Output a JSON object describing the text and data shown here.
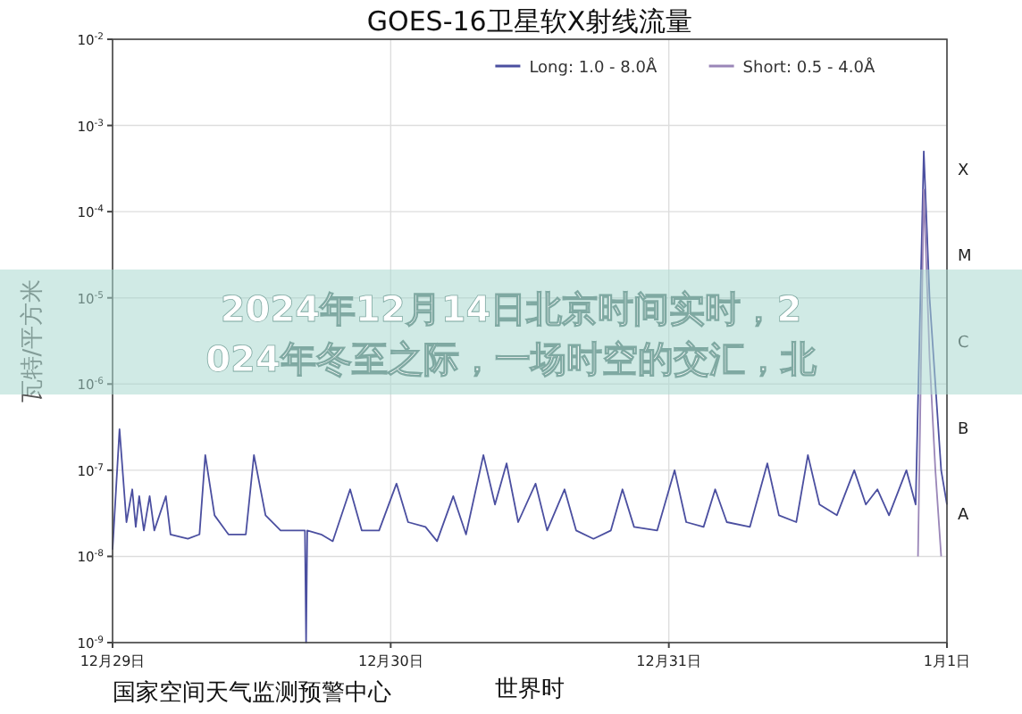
{
  "chart_data": {
    "type": "line",
    "title": "GOES-16卫星软X射线流量",
    "xlabel": "世界时",
    "ylabel": "瓦特/平方米",
    "annotations": [
      "国家空间天气监测预警中心",
      "2024年12月14日北京时间实时，2024年冬至之际，一场时空的交汇，北",
      "X",
      "M",
      "C",
      "B",
      "A"
    ],
    "log": "y",
    "grid": true,
    "legend": "top right",
    "marker": "none",
    "line_style": "solid",
    "xlim": [
      "2024-12-29T00:00",
      "2025-01-01T00:00"
    ],
    "xticks": [
      {
        "value": "2024-12-29T00:00",
        "label": "12月29日"
      },
      {
        "value": "2024-12-30T00:00",
        "label": "12月30日"
      },
      {
        "value": "2024-12-31T00:00",
        "label": "12月31日"
      },
      {
        "value": "2025-01-01T00:00",
        "label": "1月1日"
      }
    ],
    "ylim": [
      1e-09,
      0.01
    ],
    "yticks": [
      {
        "value": 1e-09,
        "label": "10$^{-9}$"
      },
      {
        "value": 1e-08,
        "label": "10$^{-8}$"
      },
      {
        "value": 1e-07,
        "label": "10$^{-7}$"
      },
      {
        "value": 1e-06,
        "label": "10$^{-6}$"
      },
      {
        "value": 1e-05,
        "label": "10$^{-5}$"
      },
      {
        "value": 0.0001,
        "label": "10$^{-4}$"
      },
      {
        "value": 0.001,
        "label": "10$^{-3}$"
      },
      {
        "value": 0.01,
        "label": "10$^{-2}$"
      }
    ],
    "series": [
      {
        "name": "Long: 1.0 - 8.0Å",
        "color": "#4b4fa0",
        "x": [
          "2024-12-29T00:00",
          "2024-12-29T00:36",
          "2024-12-29T01:12",
          "2024-12-29T01:42",
          "2024-12-29T02:00",
          "2024-12-29T02:18",
          "2024-12-29T02:42",
          "2024-12-29T03:12",
          "2024-12-29T03:36",
          "2024-12-29T04:36",
          "2024-12-29T05:00",
          "2024-12-29T06:30",
          "2024-12-29T07:30",
          "2024-12-29T08:00",
          "2024-12-29T08:48",
          "2024-12-29T10:00",
          "2024-12-29T11:30",
          "2024-12-29T12:12",
          "2024-12-29T13:12",
          "2024-12-29T14:30",
          "2024-12-29T15:30",
          "2024-12-29T16:36",
          "2024-12-29T16:42",
          "2024-12-29T16:48",
          "2024-12-29T18:00",
          "2024-12-29T19:00",
          "2024-12-29T20:30",
          "2024-12-29T21:30",
          "2024-12-29T23:00",
          "2024-12-30T00:30",
          "2024-12-30T01:30",
          "2024-12-30T03:00",
          "2024-12-30T04:00",
          "2024-12-30T05:24",
          "2024-12-30T06:30",
          "2024-12-30T08:00",
          "2024-12-30T09:00",
          "2024-12-30T10:00",
          "2024-12-30T11:00",
          "2024-12-30T12:30",
          "2024-12-30T13:30",
          "2024-12-30T15:00",
          "2024-12-30T16:00",
          "2024-12-30T17:30",
          "2024-12-30T19:00",
          "2024-12-30T20:00",
          "2024-12-30T21:00",
          "2024-12-30T23:00",
          "2024-12-31T00:30",
          "2024-12-31T01:30",
          "2024-12-31T03:00",
          "2024-12-31T04:00",
          "2024-12-31T05:00",
          "2024-12-31T07:00",
          "2024-12-31T08:30",
          "2024-12-31T09:30",
          "2024-12-31T11:00",
          "2024-12-31T12:00",
          "2024-12-31T13:00",
          "2024-12-31T14:30",
          "2024-12-31T16:00",
          "2024-12-31T17:00",
          "2024-12-31T18:00",
          "2024-12-31T19:00",
          "2024-12-31T20:30",
          "2024-12-31T21:18",
          "2024-12-31T22:00",
          "2024-12-31T22:30",
          "2024-12-31T23:00",
          "2024-12-31T23:30",
          "2025-01-01T00:00"
        ],
        "values": [
          1.2e-08,
          3e-07,
          2.5e-08,
          6e-08,
          2.2e-08,
          5e-08,
          2e-08,
          5e-08,
          2e-08,
          5e-08,
          1.8e-08,
          1.6e-08,
          1.8e-08,
          1.5e-07,
          3e-08,
          1.8e-08,
          1.8e-08,
          1.5e-07,
          3e-08,
          2e-08,
          2e-08,
          2e-08,
          1e-09,
          2e-08,
          1.8e-08,
          1.5e-08,
          6e-08,
          2e-08,
          2e-08,
          7e-08,
          2.5e-08,
          2.2e-08,
          1.5e-08,
          5e-08,
          1.8e-08,
          1.5e-07,
          4e-08,
          1.2e-07,
          2.5e-08,
          7e-08,
          2e-08,
          6e-08,
          2e-08,
          1.6e-08,
          2e-08,
          6e-08,
          2.2e-08,
          2e-08,
          1e-07,
          2.5e-08,
          2.2e-08,
          6e-08,
          2.5e-08,
          2.2e-08,
          1.2e-07,
          3e-08,
          2.5e-08,
          1.5e-07,
          4e-08,
          3e-08,
          1e-07,
          4e-08,
          6e-08,
          3e-08,
          1e-07,
          4e-08,
          0.0005,
          1e-05,
          1e-06,
          1e-07,
          4e-08
        ]
      },
      {
        "name": "Short: 0.5 - 4.0Å",
        "color": "#9a86b8",
        "x": [
          "2024-12-31T21:30",
          "2024-12-31T22:00",
          "2024-12-31T22:30",
          "2024-12-31T23:00",
          "2024-12-31T23:30"
        ],
        "values": [
          1e-08,
          0.00018,
          2e-06,
          1e-07,
          1e-08
        ]
      }
    ]
  }
}
